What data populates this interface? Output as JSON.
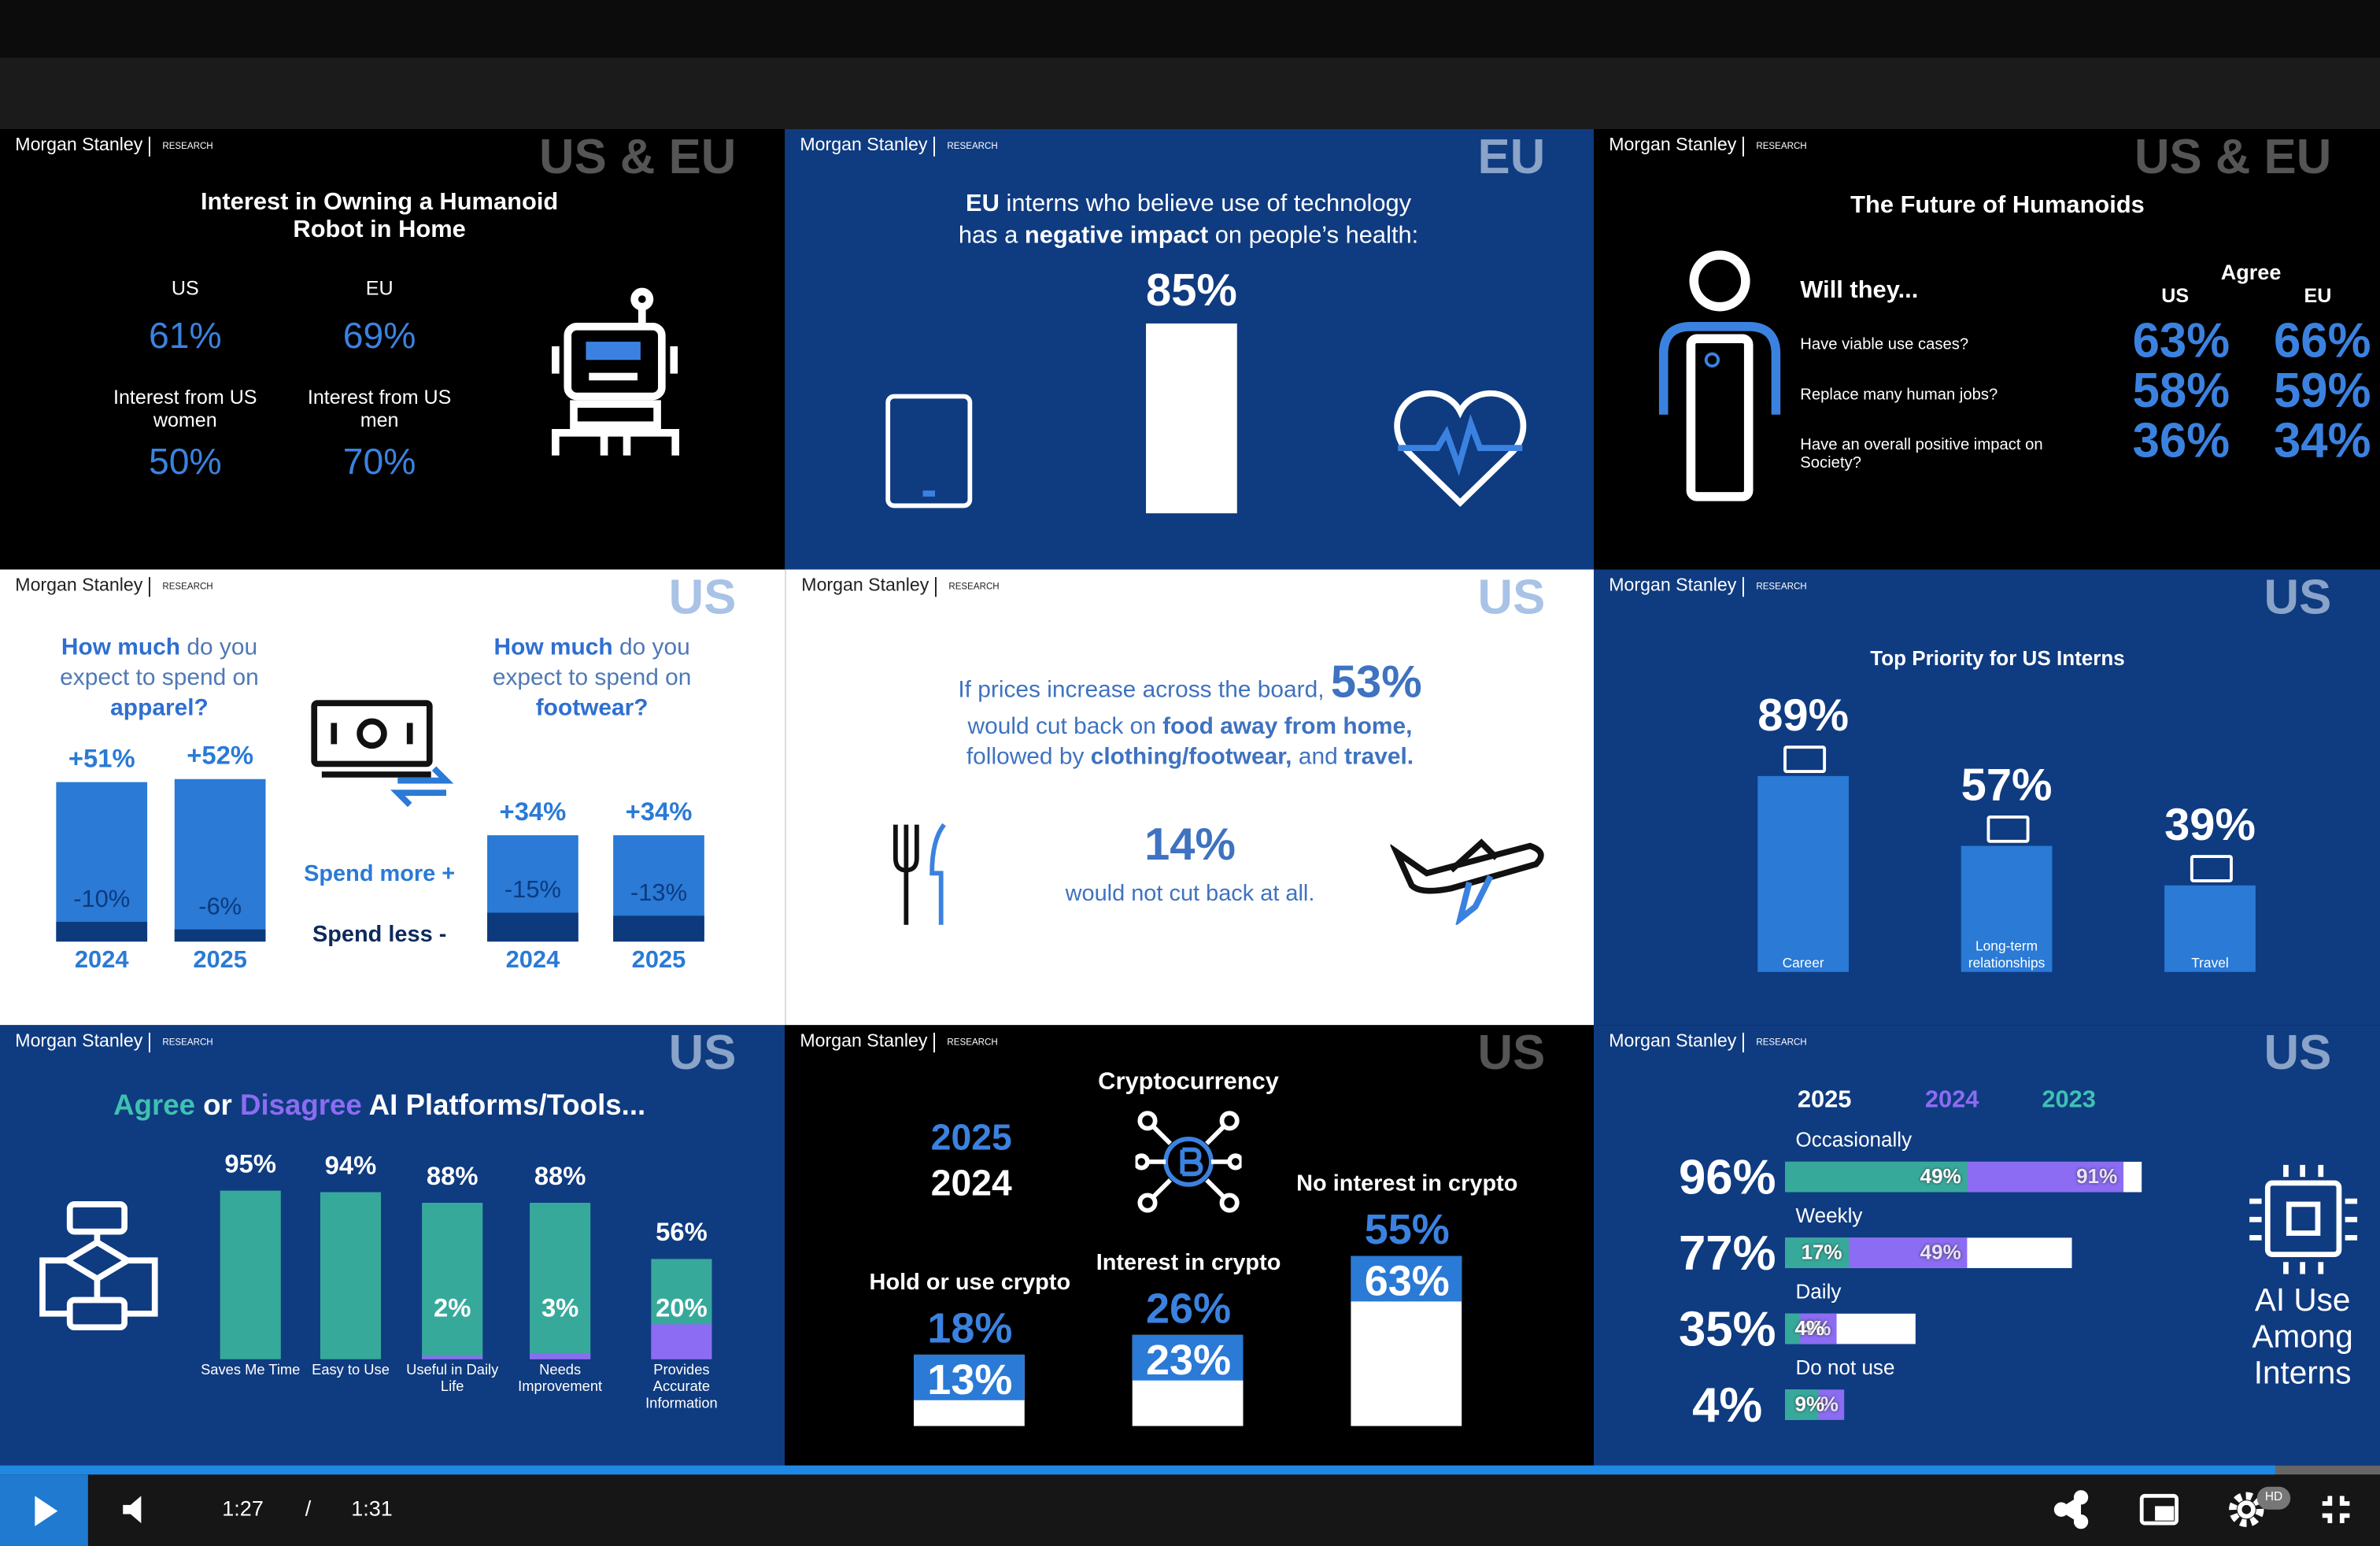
{
  "player": {
    "current_time": "1:27",
    "separator": "/",
    "duration": "1:31",
    "quality": "HD"
  },
  "p1": {
    "brand": "Morgan Stanley",
    "sub": "RESEARCH",
    "region": "US & EU",
    "title": "Interest in Owning a Humanoid Robot in Home",
    "us_label": "US",
    "us": "61%",
    "eu_label": "EU",
    "eu": "69%",
    "women_label": "Interest from US women",
    "women": "50%",
    "men_label": "Interest from US men",
    "men": "70%"
  },
  "p2": {
    "brand": "Morgan Stanley",
    "sub": "RESEARCH",
    "region": "EU",
    "text": [
      "EU",
      " interns who believe use of technology has a ",
      "negative impact",
      " on people’s health:"
    ],
    "value": "85%"
  },
  "p3": {
    "brand": "Morgan Stanley",
    "sub": "RESEARCH",
    "region": "US & EU",
    "title": "The Future of Humanoids",
    "question": "Will they...",
    "agree": "Agree",
    "us_label": "US",
    "eu_label": "EU",
    "rows": [
      {
        "q": "Have viable use cases?",
        "us": "63%",
        "eu": "66%"
      },
      {
        "q": "Replace many human jobs?",
        "us": "58%",
        "eu": "59%"
      },
      {
        "q": "Have an overall positive impact on Society?",
        "us": "36%",
        "eu": "34%"
      }
    ]
  },
  "p4": {
    "brand": "Morgan Stanley",
    "sub": "RESEARCH",
    "region": "US",
    "apparel": {
      "q": [
        "How much",
        " do you expect to spend on ",
        "apparel?"
      ],
      "bars": [
        {
          "more": "+51%",
          "less": "-10%",
          "year": "2024"
        },
        {
          "more": "+52%",
          "less": "-6%",
          "year": "2025"
        }
      ]
    },
    "footwear": {
      "q": [
        "How much",
        " do you expect to spend on ",
        "footwear?"
      ],
      "bars": [
        {
          "more": "+34%",
          "less": "-15%",
          "year": "2024"
        },
        {
          "more": "+34%",
          "less": "-13%",
          "year": "2025"
        }
      ]
    },
    "spend_more": "Spend more +",
    "spend_less": "Spend less -"
  },
  "p5": {
    "brand": "Morgan Stanley",
    "sub": "RESEARCH",
    "region": "US",
    "text": [
      "If prices increase across the board, ",
      "53%",
      " would cut back on ",
      "food away from home,",
      " followed by ",
      "clothing/footwear,",
      " and ",
      "travel."
    ],
    "value": "14%",
    "value_text": "would not cut back at all."
  },
  "p6": {
    "brand": "Morgan Stanley",
    "sub": "RESEARCH",
    "region": "US",
    "title": "Top Priority for US Interns",
    "bars": [
      {
        "value": "89%",
        "label": "Career"
      },
      {
        "value": "57%",
        "label": "Long-term relationships"
      },
      {
        "value": "39%",
        "label": "Travel"
      }
    ]
  },
  "p7": {
    "brand": "Morgan Stanley",
    "sub": "RESEARCH",
    "region": "US",
    "title": [
      "Agree",
      " or ",
      "Disagree",
      " AI Platforms/Tools..."
    ],
    "bars": [
      {
        "agree": "95%",
        "label": "Saves Me Time"
      },
      {
        "agree": "94%",
        "label": "Easy to Use"
      },
      {
        "agree": "88%",
        "disagree": "2%",
        "label": "Useful in Daily Life"
      },
      {
        "agree": "88%",
        "disagree": "3%",
        "label": "Needs Improvement"
      },
      {
        "agree": "56%",
        "disagree": "20%",
        "label": "Provides Accurate Information"
      }
    ]
  },
  "p8": {
    "brand": "Morgan Stanley",
    "sub": "RESEARCH",
    "region": "US",
    "title": "Cryptocurrency",
    "year_a": "2025",
    "year_b": "2024",
    "cols": [
      {
        "label": "Hold or use crypto",
        "y2025": "18%",
        "y2024": "13%"
      },
      {
        "label": "Interest in crypto",
        "y2025": "26%",
        "y2024": "23%"
      },
      {
        "label": "No interest in crypto",
        "y2025": "55%",
        "y2024": "63%"
      }
    ]
  },
  "p9": {
    "brand": "Morgan Stanley",
    "sub": "RESEARCH",
    "region": "US",
    "years": [
      "2025",
      "2024",
      "2023"
    ],
    "rows": [
      {
        "label": "Occasionally",
        "y2025": "96%",
        "y2024": "91%",
        "y2023": "49%"
      },
      {
        "label": "Weekly",
        "y2025": "77%",
        "y2024": "49%",
        "y2023": "17%"
      },
      {
        "label": "Daily",
        "y2025": "35%",
        "y2024": "14%",
        "y2023": "4%"
      },
      {
        "label": "Do not use",
        "y2025": "4%",
        "y2024": "16%",
        "y2023": "9%"
      }
    ],
    "side": "AI Use Among Interns"
  }
}
